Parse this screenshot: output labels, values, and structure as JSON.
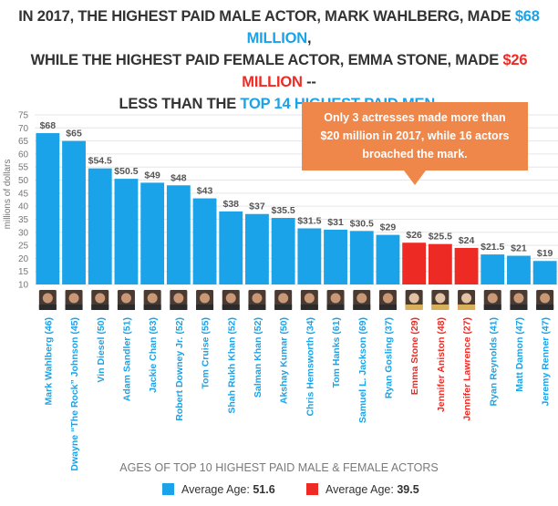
{
  "headline": {
    "l1_a": "IN 2017, THE HIGHEST PAID MALE ACTOR, MARK WAHLBERG, MADE ",
    "l1_b": "$68 MILLION",
    "l1_c": ",",
    "l2_a": "WHILE THE HIGHEST PAID FEMALE ACTOR, EMMA STONE, MADE ",
    "l2_b": "$26 MILLION",
    "l2_c": " --",
    "l3_a": "LESS THAN THE ",
    "l3_b": "TOP 14 HIGHEST PAID MEN",
    "l3_c": "."
  },
  "chart_data": {
    "type": "bar",
    "ylabel": "millions of dollars",
    "ylim": [
      10,
      75
    ],
    "yticks": [
      10,
      15,
      20,
      25,
      30,
      35,
      40,
      45,
      50,
      55,
      60,
      65,
      70,
      75
    ],
    "grid": true,
    "categories": [
      "Mark Wahlberg (46)",
      "Dwayne “The Rock” Johnson (45)",
      "Vin Diesel (50)",
      "Adam Sandler (51)",
      "Jackie Chan (63)",
      "Robert Downey Jr. (52)",
      "Tom Cruise (55)",
      "Shah Rukh Khan (52)",
      "Salman Khan (52)",
      "Akshay Kumar (50)",
      "Chris Hemsworth (34)",
      "Tom Hanks (61)",
      "Samuel L. Jackson (69)",
      "Ryan Gosling (37)",
      "Emma Stone (29)",
      "Jennifer Aniston (48)",
      "Jennifer Lawrence (27)",
      "Ryan Reynolds (41)",
      "Matt Damon (47)",
      "Jeremy Renner (47)"
    ],
    "values": [
      68,
      65,
      54.5,
      50.5,
      49,
      48,
      43,
      38,
      37,
      35.5,
      31.5,
      31,
      30.5,
      29,
      26,
      25.5,
      24,
      21.5,
      21,
      19
    ],
    "value_labels": [
      "$68",
      "$65",
      "$54.5",
      "$50.5",
      "$49",
      "$48",
      "$43",
      "$38",
      "$37",
      "$35.5",
      "$31.5",
      "$31",
      "$30.5",
      "$29",
      "$26",
      "$25.5",
      "$24",
      "$21.5",
      "$21",
      "$19"
    ],
    "groups": [
      "male",
      "male",
      "male",
      "male",
      "male",
      "male",
      "male",
      "male",
      "male",
      "male",
      "male",
      "male",
      "male",
      "male",
      "female",
      "female",
      "female",
      "male",
      "male",
      "male"
    ],
    "colors": {
      "male": "#1aa3e8",
      "female": "#ee2a24",
      "callout": "#f0874a"
    },
    "callout": {
      "lines": [
        "Only 3 actresses made more than",
        "$20 million in 2017, while 16 actors",
        "broached the mark."
      ]
    },
    "subtitle": "AGES OF TOP 10 HIGHEST PAID MALE & FEMALE ACTORS",
    "legend": [
      {
        "group": "male",
        "label": "Average Age: ",
        "value": "51.6"
      },
      {
        "group": "female",
        "label": "Average Age: ",
        "value": "39.5"
      }
    ]
  }
}
